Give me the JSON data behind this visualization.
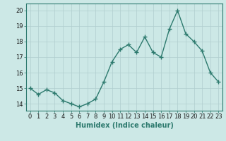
{
  "x": [
    0,
    1,
    2,
    3,
    4,
    5,
    6,
    7,
    8,
    9,
    10,
    11,
    12,
    13,
    14,
    15,
    16,
    17,
    18,
    19,
    20,
    21,
    22,
    23
  ],
  "y": [
    15.0,
    14.6,
    14.9,
    14.7,
    14.2,
    14.0,
    13.8,
    14.0,
    14.3,
    15.4,
    16.7,
    17.5,
    17.8,
    17.3,
    18.3,
    17.3,
    17.0,
    18.8,
    20.0,
    18.5,
    18.0,
    17.4,
    16.0,
    15.4
  ],
  "line_color": "#2d7a6e",
  "marker": "+",
  "marker_size": 5,
  "bg_color": "#cce8e6",
  "grid_color": "#b0cece",
  "plot_bg": "#cce8e6",
  "xlabel": "Humidex (Indice chaleur)",
  "yticks": [
    14,
    15,
    16,
    17,
    18,
    19,
    20
  ],
  "xlim": [
    -0.5,
    23.5
  ],
  "ylim": [
    13.55,
    20.45
  ],
  "tick_fontsize": 6,
  "xlabel_fontsize": 7,
  "linewidth": 1.0,
  "spine_color": "#2d7a6e"
}
